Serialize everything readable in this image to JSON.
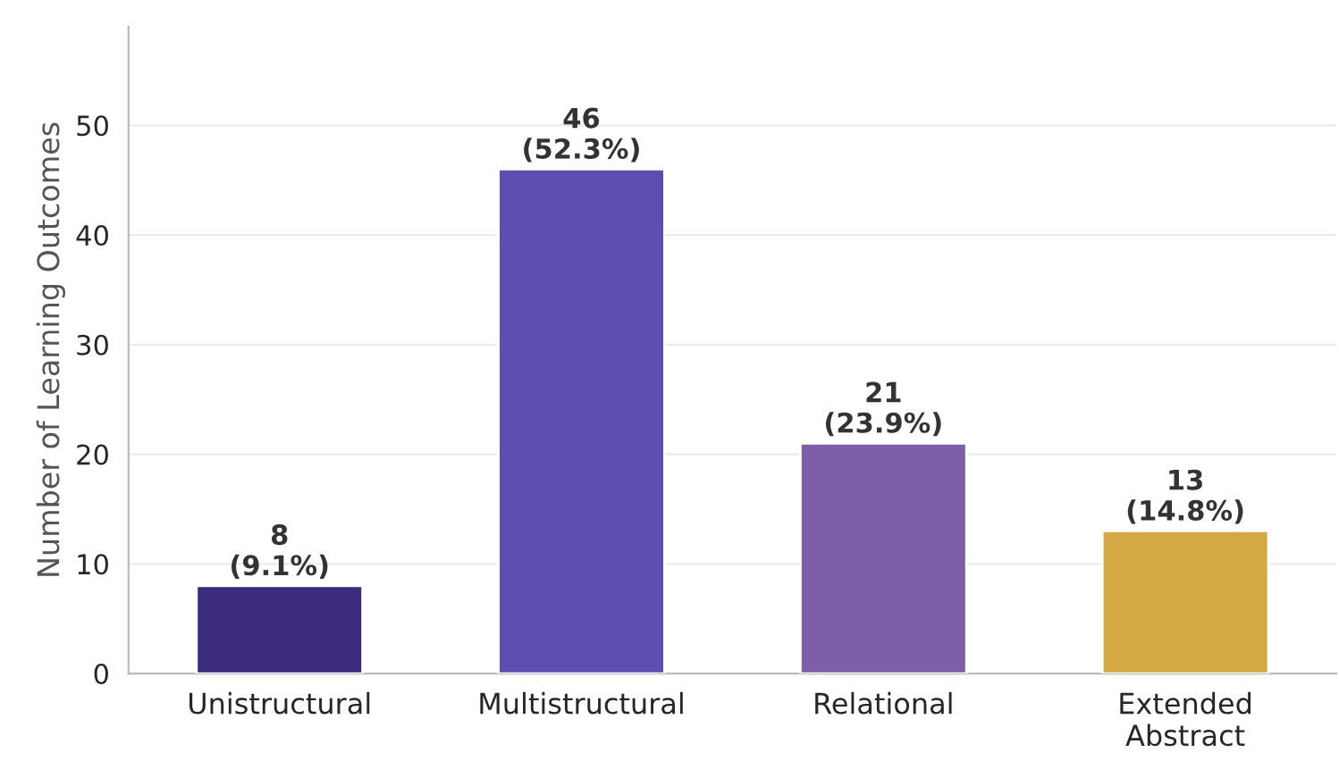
{
  "chart_data": {
    "type": "bar",
    "ylabel": "Number of Learning Outcomes",
    "categories": [
      "Unistructural",
      "Multistructural",
      "Relational",
      "Extended\nAbstract"
    ],
    "values": [
      8,
      46,
      21,
      13
    ],
    "colors": [
      "#3c2a7c",
      "#5d4fb1",
      "#7d5ea9",
      "#d4a843"
    ],
    "value_labels": [
      "8\n(9.1%)",
      "46\n(52.3%)",
      "21\n(23.9%)",
      "13\n(14.8%)"
    ],
    "ylim": [
      0,
      59
    ],
    "yticks": [
      0,
      10,
      20,
      30,
      40,
      50
    ],
    "grid": "y",
    "legend": false
  }
}
